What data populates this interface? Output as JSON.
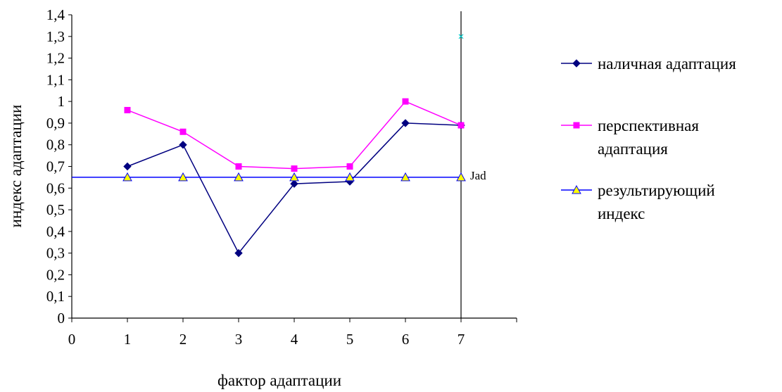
{
  "chart_data": {
    "type": "line",
    "xlabel": "фактор адаптации",
    "ylabel": "индекс адаптации",
    "x_ticks": [
      "0",
      "1",
      "2",
      "3",
      "4",
      "5",
      "6",
      "7"
    ],
    "y_ticks": [
      "0",
      "0,1",
      "0,2",
      "0,3",
      "0,4",
      "0,5",
      "0,6",
      "0,7",
      "0,8",
      "0,9",
      "1",
      "1,1",
      "1,2",
      "1,3",
      "1,4"
    ],
    "xlim": [
      0,
      8
    ],
    "ylim": [
      0,
      1.4
    ],
    "grid": false,
    "legend_position": "right",
    "series": [
      {
        "name": "наличная адаптация",
        "color": "#000080",
        "marker": "diamond",
        "x": [
          1,
          2,
          3,
          4,
          5,
          6,
          7
        ],
        "y": [
          0.7,
          0.8,
          0.3,
          0.62,
          0.63,
          0.9,
          0.89
        ]
      },
      {
        "name": "перспективная адаптация",
        "name_lines": [
          "перспективная",
          "адаптация"
        ],
        "color": "#FF00FF",
        "marker": "square",
        "x": [
          1,
          2,
          3,
          4,
          5,
          6,
          7
        ],
        "y": [
          0.96,
          0.86,
          0.7,
          0.69,
          0.7,
          1.0,
          0.89
        ]
      },
      {
        "name": "результирующий индекс",
        "name_lines": [
          "результирующий",
          "индекс"
        ],
        "color": "#0000FF",
        "marker": "triangle",
        "marker_fill": "#FFFF00",
        "x": [
          1,
          2,
          3,
          4,
          5,
          6,
          7
        ],
        "y": [
          0.65,
          0.65,
          0.65,
          0.65,
          0.65,
          0.65,
          0.65
        ],
        "line_x_range": [
          0,
          7
        ]
      }
    ],
    "vertical_line": {
      "x": 7
    },
    "annotations": [
      {
        "text": "Jad",
        "x": 7,
        "y": 0.65
      }
    ],
    "stray_markers": [
      {
        "marker": "x",
        "color": "#00C8C8",
        "x": 7,
        "y": 1.3
      }
    ]
  }
}
